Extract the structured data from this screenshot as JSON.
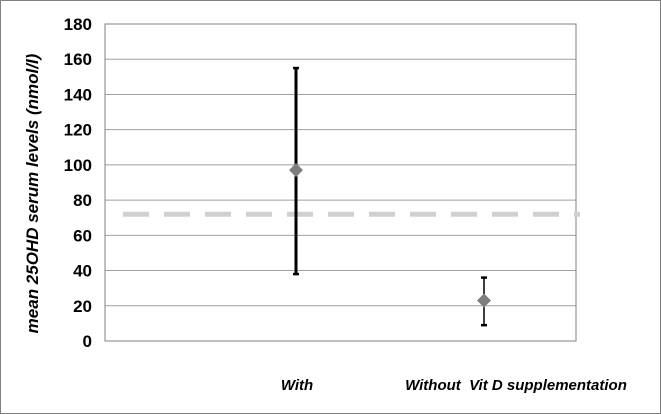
{
  "chart_data": {
    "type": "scatter",
    "title": "",
    "xlabel": "",
    "ylabel": "mean 25OHD serum levels (nmol/l)",
    "ylim": [
      0,
      180
    ],
    "yticks": [
      0,
      20,
      40,
      60,
      80,
      100,
      120,
      140,
      160,
      180
    ],
    "grid": true,
    "categories": [
      "With",
      "Without  Vit D supplementation"
    ],
    "points": [
      {
        "category": "With",
        "mean": 97,
        "lower": 38,
        "upper": 155
      },
      {
        "category": "Without  Vit D supplementation",
        "mean": 23,
        "lower": 9,
        "upper": 36
      }
    ],
    "reference_line": {
      "value": 72,
      "style": "dashed"
    },
    "colors": {
      "marker": "#7f7f7f",
      "error_bar": "#000000",
      "reference_line": "#d0d0d0",
      "grid": "#a0a0a0",
      "frame": "#7f7f7f"
    }
  }
}
